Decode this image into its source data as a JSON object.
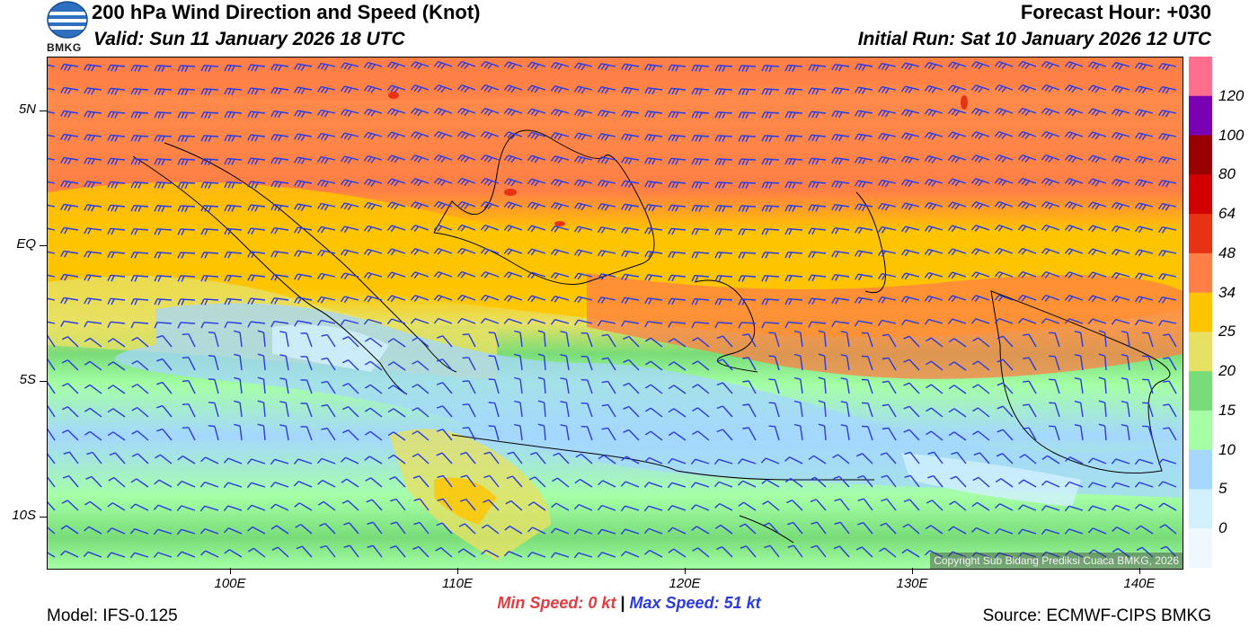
{
  "header": {
    "title": "200 hPa Wind Direction and Speed (Knot)",
    "valid": "Valid: Sun 11 January 2026 18 UTC",
    "forecast_hour": "Forecast Hour: +030",
    "initial_run": "Initial Run: Sat 10 January 2026 12 UTC",
    "logo_text": "BMKG"
  },
  "map": {
    "lat_labels": [
      "5N",
      "EQ",
      "5S",
      "10S"
    ],
    "lat_values": [
      5,
      0,
      -5,
      -10
    ],
    "lon_labels": [
      "100E",
      "110E",
      "120E",
      "130E",
      "140E"
    ],
    "lon_values": [
      100,
      110,
      120,
      130,
      140
    ],
    "extent": {
      "lon": [
        92,
        142
      ],
      "lat": [
        -12,
        7
      ]
    },
    "copyright": "Copyright Sub Bidang Prediksi Cuaca BMKG, 2026",
    "barb_color": "#2a3adf",
    "coastline_color": "#000000"
  },
  "colorbar": {
    "labels": [
      "120",
      "100",
      "80",
      "64",
      "48",
      "34",
      "25",
      "20",
      "15",
      "10",
      "5",
      "0"
    ],
    "colors": [
      "#ff6e8c",
      "#7a00b4",
      "#9b0000",
      "#d20000",
      "#e83214",
      "#ff7f46",
      "#ffc400",
      "#e6e164",
      "#78dc78",
      "#a5ffa5",
      "#a5d7ff",
      "#d2f0ff",
      "#f0f8ff"
    ]
  },
  "footer": {
    "min_label": "Min Speed:",
    "min_value": "0 kt",
    "separator": "|",
    "max_label": "Max Speed:",
    "max_value": "51 kt",
    "model": "Model: IFS-0.125",
    "source": "Source: ECMWF-CIPS BMKG"
  }
}
